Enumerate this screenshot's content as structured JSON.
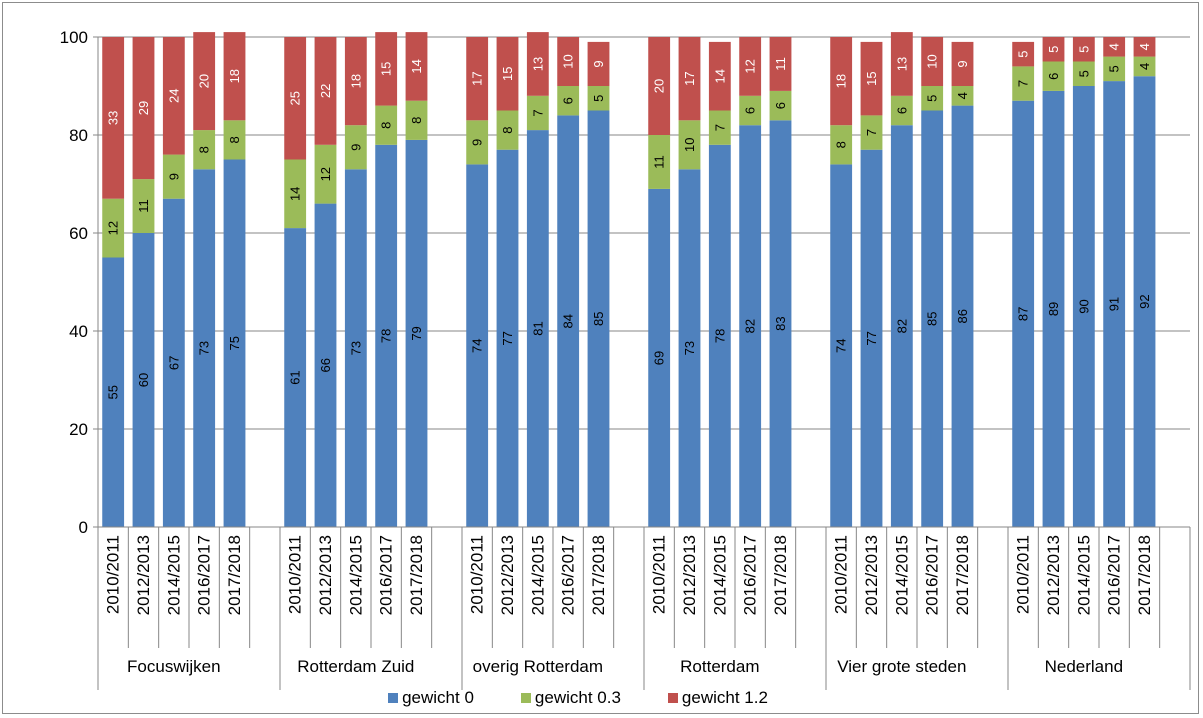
{
  "chart_data": {
    "type": "bar",
    "stacked": true,
    "ylim": [
      0,
      100
    ],
    "yticks": [
      0,
      20,
      40,
      60,
      80,
      100
    ],
    "grid": true,
    "legend_position": "bottom",
    "group_labels": [
      "Focuswijken",
      "Rotterdam Zuid",
      "overig Rotterdam",
      "Rotterdam",
      "Vier grote steden",
      "Nederland"
    ],
    "period_labels": [
      "2010/2011",
      "2012/2013",
      "2014/2015",
      "2016/2017",
      "2017/2018"
    ],
    "series": [
      {
        "name": "gewicht 0",
        "color": "#4f81bd",
        "values": [
          [
            55,
            60,
            67,
            73,
            75
          ],
          [
            61,
            66,
            73,
            78,
            79
          ],
          [
            74,
            77,
            81,
            84,
            85
          ],
          [
            69,
            73,
            78,
            82,
            83
          ],
          [
            74,
            77,
            82,
            85,
            86
          ],
          [
            87,
            89,
            90,
            91,
            92
          ]
        ]
      },
      {
        "name": "gewicht 0.3",
        "color": "#9bbb59",
        "values": [
          [
            12,
            11,
            9,
            8,
            8
          ],
          [
            14,
            12,
            9,
            8,
            8
          ],
          [
            9,
            8,
            7,
            6,
            5
          ],
          [
            11,
            10,
            7,
            6,
            6
          ],
          [
            8,
            7,
            6,
            5,
            4
          ],
          [
            7,
            6,
            5,
            5,
            4
          ]
        ]
      },
      {
        "name": "gewicht 1.2",
        "color": "#c0504d",
        "values": [
          [
            33,
            29,
            24,
            20,
            18
          ],
          [
            25,
            22,
            18,
            15,
            14
          ],
          [
            17,
            15,
            13,
            10,
            9
          ],
          [
            20,
            17,
            14,
            12,
            11
          ],
          [
            18,
            15,
            13,
            10,
            9
          ],
          [
            5,
            5,
            5,
            4,
            4
          ]
        ]
      }
    ]
  }
}
